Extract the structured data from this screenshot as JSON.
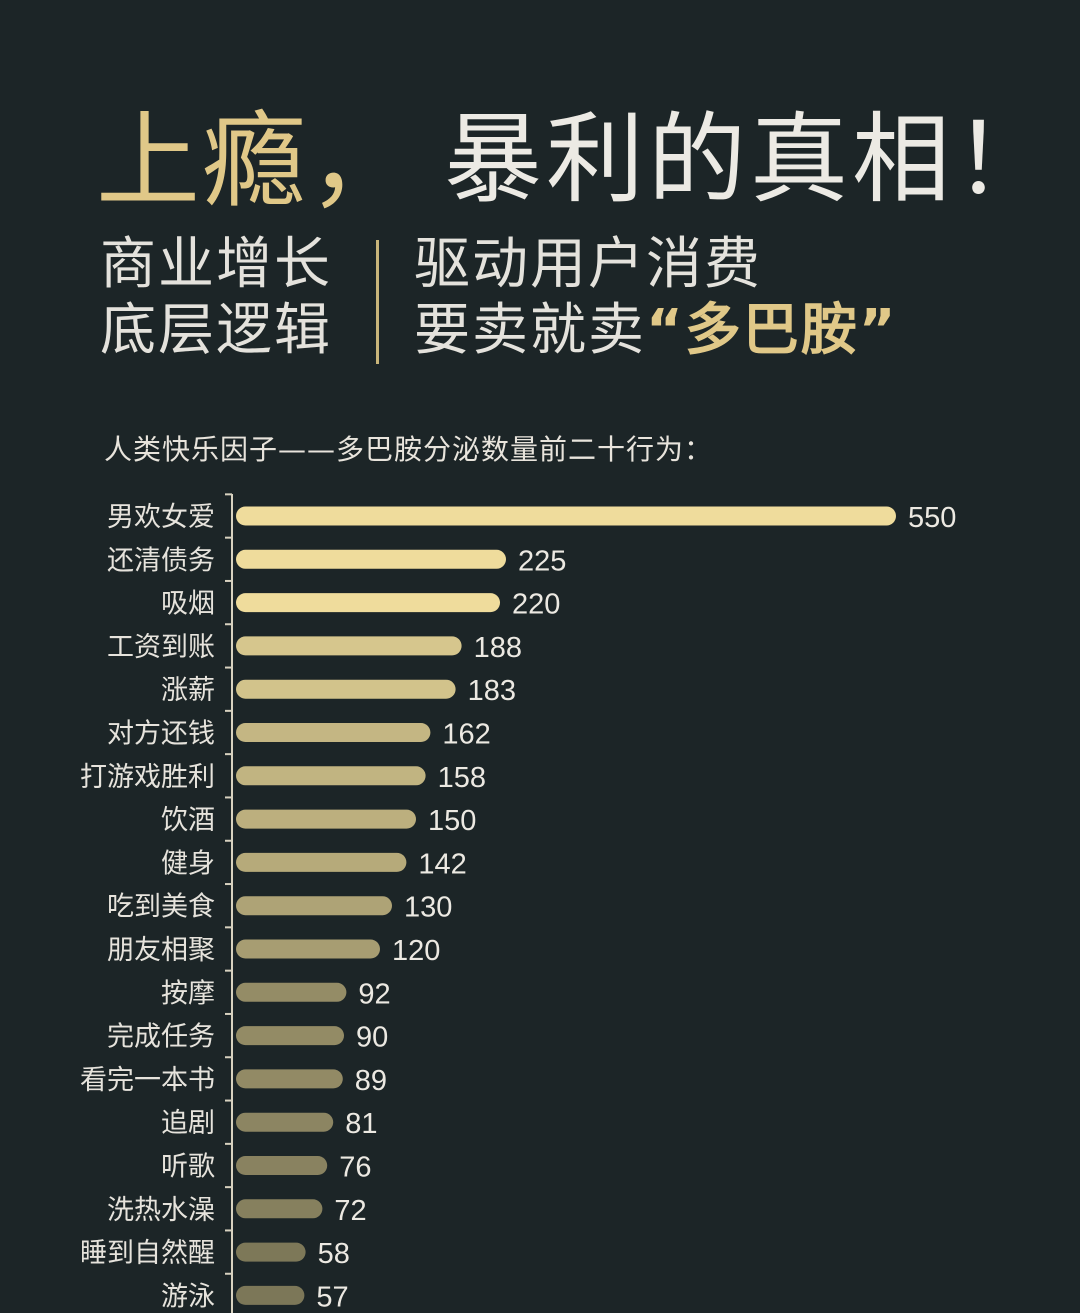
{
  "title": {
    "accent": "上瘾，",
    "rest": "暴利的真相！"
  },
  "subtitle": {
    "left_line1": "商业增长",
    "left_line2": "底层逻辑",
    "right_line1": "驱动用户消费",
    "right_line2_prefix": "要卖就卖",
    "right_line2_highlight": "“多巴胺”"
  },
  "chart_heading": "人类快乐因子——多巴胺分泌数量前二十行为：",
  "colors": {
    "background": "#1c2527",
    "accent_gold": "#e0c888",
    "bar_bright": "#efdc9c",
    "bar_dim": "#7c7758"
  },
  "chart_data": {
    "type": "bar",
    "orientation": "horizontal",
    "title": "人类快乐因子——多巴胺分泌数量前二十行为：",
    "xlabel": "",
    "ylabel": "",
    "categories": [
      "男欢女爱",
      "还清债务",
      "吸烟",
      "工资到账",
      "涨薪",
      "对方还钱",
      "打游戏胜利",
      "饮酒",
      "健身",
      "吃到美食",
      "朋友相聚",
      "按摩",
      "完成任务",
      "看完一本书",
      "追剧",
      "听歌",
      "洗热水澡",
      "睡到自然醒",
      "游泳"
    ],
    "values": [
      550,
      225,
      220,
      188,
      183,
      162,
      158,
      150,
      142,
      130,
      120,
      92,
      90,
      89,
      81,
      76,
      72,
      58,
      57
    ],
    "data_labels": [
      "550",
      "225",
      "220",
      "188",
      "183",
      "162",
      "158",
      "150",
      "142",
      "130",
      "120",
      "92",
      "90",
      "89",
      "81",
      "76",
      "72",
      "58",
      "57"
    ],
    "xlim": [
      0,
      550
    ],
    "grid": false,
    "legend": "none"
  }
}
